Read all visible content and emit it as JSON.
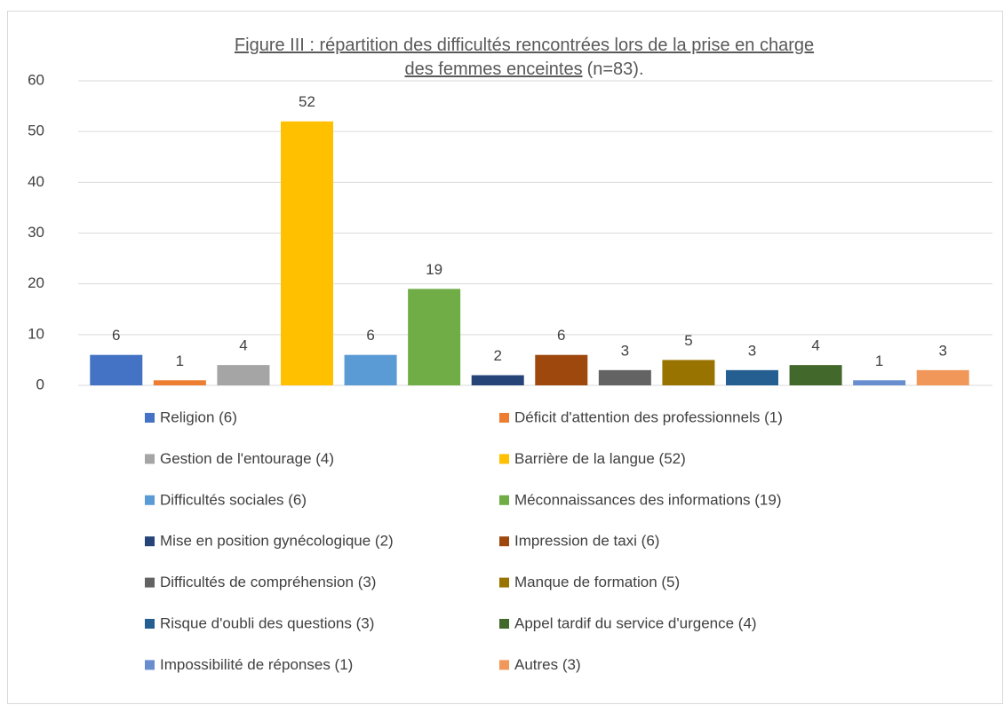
{
  "chart_data": {
    "type": "bar",
    "title": "Figure III : répartition des difficultés rencontrées lors de la prise en charge des femmes enceintes",
    "subtitle": "(n=83).",
    "categories": [
      "Religion (6)",
      "Déficit d'attention des professionnels (1)",
      "Gestion de l'entourage (4)",
      "Barrière de la langue (52)",
      "Difficultés sociales (6)",
      "Méconnaissances des informations (19)",
      "Mise en position gynécologique (2)",
      "Impression de taxi (6)",
      "Difficultés de compréhension (3)",
      "Manque de formation (5)",
      "Risque d'oubli des questions (3)",
      "Appel tardif du service d'urgence (4)",
      "Impossibilité de réponses (1)",
      "Autres (3)"
    ],
    "values": [
      6,
      1,
      4,
      52,
      6,
      19,
      2,
      6,
      3,
      5,
      3,
      4,
      1,
      3
    ],
    "colors": [
      "#4472c4",
      "#ed7d31",
      "#a5a5a5",
      "#ffc000",
      "#5b9bd5",
      "#70ad47",
      "#264478",
      "#9e480e",
      "#636363",
      "#997300",
      "#255e91",
      "#43682b",
      "#698ed0",
      "#f1975a"
    ],
    "ylim": [
      0,
      60
    ],
    "yticks": [
      0,
      10,
      20,
      30,
      40,
      50,
      60
    ],
    "grid": true,
    "legend": "bottom"
  }
}
